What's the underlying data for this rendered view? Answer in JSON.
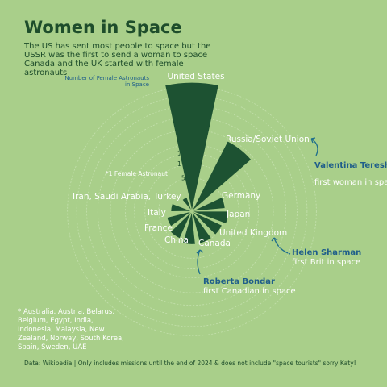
{
  "chart_data": {
    "type": "radial_bar",
    "title": "Women in Space",
    "subtitle": "The US has sent most people to space but the USSR was the first to send a woman to space Canada and the UK started with female astronauts",
    "axis_title": "Number of Female Astronauts in Space",
    "categories": [
      "United States",
      "Russia/Soviet Union",
      "Germany",
      "Japan",
      "United Kingdom",
      "Canada",
      "China",
      "France",
      "Italy",
      "Iran, Saudi Arabia, Turkey",
      "*1 Female Astronaut"
    ],
    "values": [
      75,
      28,
      5,
      6,
      5,
      5,
      5,
      4,
      3,
      2,
      1
    ],
    "color": "#1d5232",
    "rlim": [
      0,
      80
    ],
    "rticks": [
      5,
      10,
      15,
      20,
      30,
      40,
      50,
      60,
      70
    ],
    "scale": "sqrt",
    "grid": true,
    "annotations": [
      {
        "name": "Valentina Tereshkova",
        "text": "first woman in space"
      },
      {
        "name": "Helen Sharman",
        "text": "first Brit in space"
      },
      {
        "name": "Roberta Bondar",
        "text": "first Canadian in space"
      }
    ],
    "footnote": "* Australia, Austria, Belarus, Belgium, Egypt, India, Indonesia, Malaysia, New Zealand, Norway, South Korea, Spain, Sweden, UAE",
    "source": "Data: Wikipedia | Only includes missions until the end of 2024 & does not include \"space tourists\" sorry Katy!"
  }
}
